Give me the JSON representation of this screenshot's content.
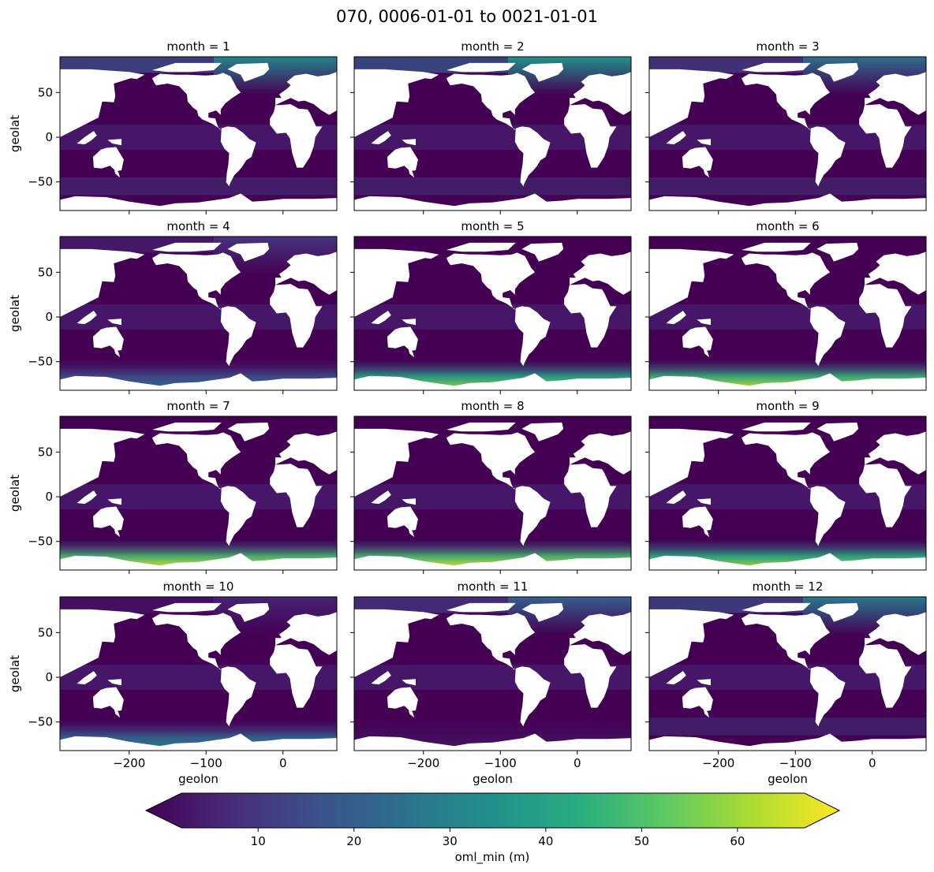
{
  "figure_title": "070, 0006-01-01 to 0021-01-01",
  "chart_data": {
    "type": "heatmap",
    "variable": "oml_min (m)",
    "layout": {
      "rows": 4,
      "cols": 3
    },
    "panels": [
      {
        "title": "month = 1",
        "month": 1,
        "north_level": 0.45,
        "south_level": 0.0
      },
      {
        "title": "month = 2",
        "month": 2,
        "north_level": 0.5,
        "south_level": 0.0
      },
      {
        "title": "month = 3",
        "month": 3,
        "north_level": 0.35,
        "south_level": 0.0
      },
      {
        "title": "month = 4",
        "month": 4,
        "north_level": 0.15,
        "south_level": 0.35
      },
      {
        "title": "month = 5",
        "month": 5,
        "north_level": 0.0,
        "south_level": 0.85
      },
      {
        "title": "month = 6",
        "month": 6,
        "north_level": 0.0,
        "south_level": 0.95
      },
      {
        "title": "month = 7",
        "month": 7,
        "north_level": 0.0,
        "south_level": 1.0
      },
      {
        "title": "month = 8",
        "month": 8,
        "north_level": 0.0,
        "south_level": 1.0
      },
      {
        "title": "month = 9",
        "month": 9,
        "north_level": 0.0,
        "south_level": 0.9
      },
      {
        "title": "month = 10",
        "month": 10,
        "north_level": 0.1,
        "south_level": 0.45
      },
      {
        "title": "month = 11",
        "month": 11,
        "north_level": 0.3,
        "south_level": 0.05
      },
      {
        "title": "month = 12",
        "month": 12,
        "north_level": 0.4,
        "south_level": 0.0
      }
    ],
    "xlabel": "geolon",
    "ylabel": "geolat",
    "xlim": [
      -290,
      70
    ],
    "ylim": [
      -82,
      90
    ],
    "xticks": [
      -200,
      -100,
      0
    ],
    "xtick_labels": [
      "−200",
      "−100",
      "0"
    ],
    "yticks": [
      -50,
      0,
      50
    ],
    "ytick_labels": [
      "−50",
      "0",
      "50"
    ],
    "colorbar": {
      "label": "oml_min (m)",
      "colormap": "viridis",
      "vmin": 2,
      "vmax": 67,
      "extend": "both",
      "ticks": [
        10,
        20,
        30,
        40,
        50,
        60
      ],
      "tick_labels": [
        "10",
        "20",
        "30",
        "40",
        "50",
        "60"
      ]
    }
  }
}
